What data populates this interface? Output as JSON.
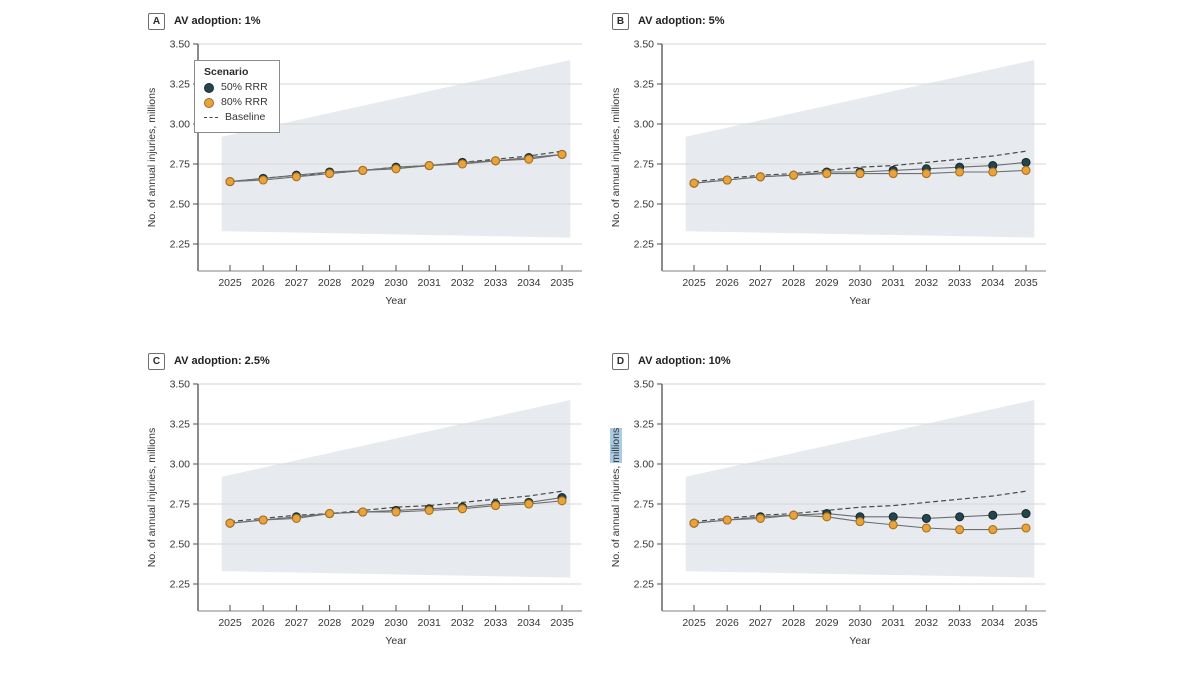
{
  "colors": {
    "background": "#ffffff",
    "text": "#353535",
    "axis_y": "#4d4d4d",
    "axis_x": "#9a9a9a",
    "grid": "#d6d6d6",
    "band": "#e7ebef",
    "series_50_fill": "#25444C",
    "series_50_stroke": "#162c31",
    "series_80_fill": "#E9A23C",
    "series_80_stroke": "#a8721c",
    "connector_line": "#6e6e6e",
    "baseline": "#4a4a4a",
    "ylabel_highlight_bg": "#a9cbe4"
  },
  "legend": {
    "title": "Scenario",
    "position": "top-left inside panel A",
    "items": [
      {
        "label": "50% RRR",
        "marker": "dot",
        "color": "#25444C"
      },
      {
        "label": "80% RRR",
        "marker": "dot",
        "color": "#E9A23C"
      },
      {
        "label": "Baseline",
        "marker": "dash",
        "color": "#4a4a4a"
      }
    ]
  },
  "chart_data": [
    {
      "type": "line",
      "panel_letter": "A",
      "title": "AV adoption: 1%",
      "xlabel": "Year",
      "ylabel": "No. of annual injuries, millions",
      "x": [
        2025,
        2026,
        2027,
        2028,
        2029,
        2030,
        2031,
        2032,
        2033,
        2034,
        2035
      ],
      "yticks": [
        "3.50",
        "3.25",
        "3.00",
        "2.75",
        "2.50",
        "2.25"
      ],
      "ylim": [
        2.08,
        3.5
      ],
      "grid": "horizontal",
      "legend_position": "top-left",
      "band": {
        "top": [
          2.92,
          3.4
        ],
        "bottom": [
          2.33,
          2.29
        ]
      },
      "series": [
        {
          "name": "50% RRR",
          "values": [
            2.64,
            2.66,
            2.68,
            2.7,
            2.71,
            2.73,
            2.74,
            2.76,
            2.77,
            2.79,
            2.81
          ]
        },
        {
          "name": "80% RRR",
          "values": [
            2.64,
            2.65,
            2.67,
            2.69,
            2.71,
            2.72,
            2.74,
            2.75,
            2.77,
            2.78,
            2.81
          ]
        },
        {
          "name": "Baseline",
          "style": "dashed",
          "values": [
            2.64,
            2.66,
            2.68,
            2.69,
            2.71,
            2.73,
            2.74,
            2.76,
            2.78,
            2.8,
            2.83
          ]
        }
      ]
    },
    {
      "type": "line",
      "panel_letter": "B",
      "title": "AV adoption: 5%",
      "xlabel": "Year",
      "ylabel": "No. of annual injuries, millions",
      "x": [
        2025,
        2026,
        2027,
        2028,
        2029,
        2030,
        2031,
        2032,
        2033,
        2034,
        2035
      ],
      "yticks": [
        "3.50",
        "3.25",
        "3.00",
        "2.75",
        "2.50",
        "2.25"
      ],
      "ylim": [
        2.08,
        3.5
      ],
      "grid": "horizontal",
      "band": {
        "top": [
          2.92,
          3.4
        ],
        "bottom": [
          2.33,
          2.29
        ]
      },
      "series": [
        {
          "name": "50% RRR",
          "values": [
            2.63,
            2.65,
            2.67,
            2.68,
            2.7,
            2.7,
            2.71,
            2.72,
            2.73,
            2.74,
            2.76
          ]
        },
        {
          "name": "80% RRR",
          "values": [
            2.63,
            2.65,
            2.67,
            2.68,
            2.69,
            2.69,
            2.69,
            2.69,
            2.7,
            2.7,
            2.71
          ]
        },
        {
          "name": "Baseline",
          "style": "dashed",
          "values": [
            2.64,
            2.66,
            2.68,
            2.69,
            2.71,
            2.73,
            2.74,
            2.76,
            2.78,
            2.8,
            2.83
          ]
        }
      ]
    },
    {
      "type": "line",
      "panel_letter": "C",
      "title": "AV adoption: 2.5%",
      "xlabel": "Year",
      "ylabel": "No. of annual injuries, millions",
      "x": [
        2025,
        2026,
        2027,
        2028,
        2029,
        2030,
        2031,
        2032,
        2033,
        2034,
        2035
      ],
      "yticks": [
        "3.50",
        "3.25",
        "3.00",
        "2.75",
        "2.50",
        "2.25"
      ],
      "ylim": [
        2.08,
        3.5
      ],
      "grid": "horizontal",
      "band": {
        "top": [
          2.92,
          3.4
        ],
        "bottom": [
          2.33,
          2.29
        ]
      },
      "series": [
        {
          "name": "50% RRR",
          "values": [
            2.63,
            2.65,
            2.67,
            2.69,
            2.7,
            2.71,
            2.72,
            2.73,
            2.75,
            2.76,
            2.79
          ]
        },
        {
          "name": "80% RRR",
          "values": [
            2.63,
            2.65,
            2.66,
            2.69,
            2.7,
            2.7,
            2.71,
            2.72,
            2.74,
            2.75,
            2.77
          ]
        },
        {
          "name": "Baseline",
          "style": "dashed",
          "values": [
            2.64,
            2.66,
            2.68,
            2.69,
            2.71,
            2.73,
            2.74,
            2.76,
            2.78,
            2.8,
            2.83
          ]
        }
      ]
    },
    {
      "type": "line",
      "panel_letter": "D",
      "title": "AV adoption: 10%",
      "xlabel": "Year",
      "ylabel": "No. of annual injuries, millions",
      "ylabel_highlight": "millions",
      "x": [
        2025,
        2026,
        2027,
        2028,
        2029,
        2030,
        2031,
        2032,
        2033,
        2034,
        2035
      ],
      "yticks": [
        "3.50",
        "3.25",
        "3.00",
        "2.75",
        "2.50",
        "2.25"
      ],
      "ylim": [
        2.08,
        3.5
      ],
      "grid": "horizontal",
      "band": {
        "top": [
          2.92,
          3.4
        ],
        "bottom": [
          2.33,
          2.29
        ]
      },
      "series": [
        {
          "name": "50% RRR",
          "values": [
            2.63,
            2.65,
            2.67,
            2.68,
            2.69,
            2.67,
            2.67,
            2.66,
            2.67,
            2.68,
            2.69
          ]
        },
        {
          "name": "80% RRR",
          "values": [
            2.63,
            2.65,
            2.66,
            2.68,
            2.67,
            2.64,
            2.62,
            2.6,
            2.59,
            2.59,
            2.6
          ]
        },
        {
          "name": "Baseline",
          "style": "dashed",
          "values": [
            2.64,
            2.66,
            2.68,
            2.69,
            2.71,
            2.73,
            2.74,
            2.76,
            2.78,
            2.8,
            2.83
          ]
        }
      ]
    }
  ]
}
